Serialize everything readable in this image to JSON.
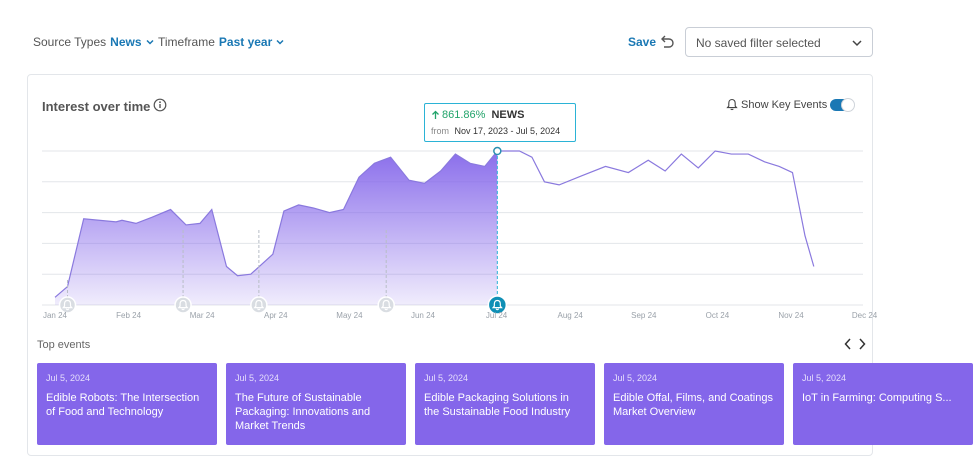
{
  "toolbar": {
    "source_label": "Source Types",
    "source_value": "News",
    "timeframe_label": "Timeframe",
    "timeframe_value": "Past year",
    "save_label": "Save",
    "saved_filter": "No saved filter selected"
  },
  "panel": {
    "title": "Interest over time",
    "key_events_label": "Show Key Events",
    "key_events_on": true
  },
  "tooltip": {
    "change": "861.86%",
    "series": "NEWS",
    "from_label": "from",
    "range": "Nov 17, 2023 - Jul 5, 2024"
  },
  "colors": {
    "accent": "#1a78b4",
    "area": "#8466ea",
    "line": "#8a79de",
    "positive": "#22a46b",
    "tooltip_border": "#2bb3d6"
  },
  "chart_data": {
    "type": "area",
    "x_tick_labels": [
      "Jan 24",
      "Feb 24",
      "Mar 24",
      "Apr 24",
      "May 24",
      "Jun 24",
      "Jul 24",
      "Aug 24",
      "Sep 24",
      "Oct 24",
      "Nov 24",
      "Dec 24"
    ],
    "x": [
      0,
      0.17,
      0.39,
      0.83,
      0.91,
      1.1,
      1.32,
      1.57,
      1.78,
      1.97,
      2.13,
      2.33,
      2.48,
      2.66,
      2.96,
      3.11,
      3.31,
      3.51,
      3.73,
      3.92,
      4.13,
      4.34,
      4.56,
      4.81,
      5.02,
      5.24,
      5.44,
      5.64,
      5.84,
      6.01,
      6.19,
      6.31,
      6.48,
      6.65,
      6.85,
      7.16,
      7.48,
      7.79,
      8.06,
      8.29,
      8.51,
      8.74,
      8.97,
      9.19,
      9.42,
      9.64,
      9.84,
      10.02,
      10.19,
      10.31
    ],
    "y": [
      5,
      12,
      56,
      54,
      55,
      53,
      57,
      62,
      52,
      53,
      62,
      25,
      19,
      20,
      33,
      61,
      65,
      63,
      60,
      62,
      83,
      92,
      96,
      81,
      79,
      87,
      98,
      92,
      90,
      100,
      100,
      100,
      96,
      80,
      78,
      84,
      90,
      86,
      94,
      87,
      98,
      89,
      100,
      98,
      98,
      93,
      90,
      86,
      45,
      25
    ],
    "ylim": [
      0,
      100
    ],
    "highlight_index": 29,
    "key_events_x": [
      0.17,
      1.74,
      2.77,
      4.5,
      6.01
    ],
    "grid": true
  },
  "top_events": {
    "title": "Top events",
    "items": [
      {
        "date": "Jul 5, 2024",
        "title": "Edible Robots: The Intersection of Food and Technology"
      },
      {
        "date": "Jul 5, 2024",
        "title": "The Future of Sustainable Packaging: Innovations and Market Trends"
      },
      {
        "date": "Jul 5, 2024",
        "title": "Edible Packaging Solutions in the Sustainable Food Industry"
      },
      {
        "date": "Jul 5, 2024",
        "title": "Edible Offal, Films, and Coatings Market Overview"
      },
      {
        "date": "Jul 5, 2024",
        "title": "IoT in Farming: Computing S..."
      }
    ]
  }
}
